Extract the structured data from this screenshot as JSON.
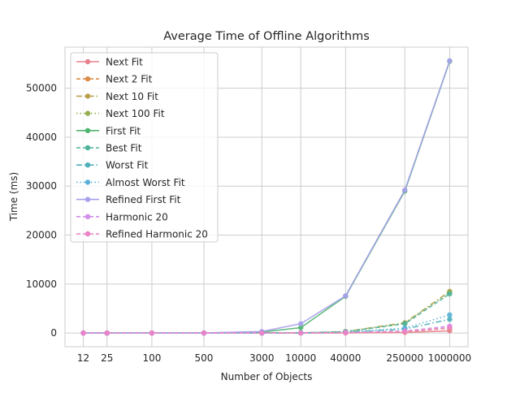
{
  "chart_data": {
    "type": "line",
    "title": "Average Time of Offline Algorithms",
    "xlabel": "Number of Objects",
    "ylabel": "Time (ms)",
    "x_scale": "log",
    "x": [
      12,
      25,
      100,
      500,
      3000,
      10000,
      40000,
      250000,
      1000000
    ],
    "x_tick_labels": [
      "12",
      "25",
      "100",
      "500",
      "3000",
      "10000",
      "40000",
      "250000",
      "1000000"
    ],
    "y_ticks": [
      0,
      10000,
      20000,
      30000,
      40000,
      50000
    ],
    "y_tick_labels": [
      "0",
      "10000",
      "20000",
      "30000",
      "40000",
      "50000"
    ],
    "ylim": [
      -2800,
      58400
    ],
    "grid": true,
    "legend_position": "top-left",
    "series": [
      {
        "name": "Next Fit",
        "color": "#e8808e",
        "dash": "solid",
        "values": [
          0,
          0,
          0,
          0,
          2,
          5,
          20,
          120,
          450
        ]
      },
      {
        "name": "Next 2 Fit",
        "color": "#dd8c48",
        "dash": "dashed",
        "values": [
          0,
          0,
          0,
          0,
          3,
          8,
          40,
          250,
          1000
        ]
      },
      {
        "name": "Next 10 Fit",
        "color": "#b9a04a",
        "dash": "dashdot",
        "values": [
          0,
          0,
          0,
          1,
          10,
          40,
          300,
          2100,
          8500
        ]
      },
      {
        "name": "Next 100 Fit",
        "color": "#96ae4f",
        "dash": "dotted",
        "values": [
          0,
          0,
          0,
          1,
          10,
          40,
          300,
          2000,
          8300
        ]
      },
      {
        "name": "First Fit",
        "color": "#4fb56f",
        "dash": "solid",
        "values": [
          0,
          0,
          1,
          15,
          200,
          1100,
          7500,
          29000,
          55500
        ]
      },
      {
        "name": "Best Fit",
        "color": "#4cb49a",
        "dash": "dashed",
        "values": [
          0,
          0,
          0,
          1,
          10,
          40,
          250,
          1900,
          8000
        ]
      },
      {
        "name": "Worst Fit",
        "color": "#4fafbb",
        "dash": "dashdot",
        "values": [
          0,
          0,
          0,
          1,
          8,
          30,
          150,
          800,
          2800
        ]
      },
      {
        "name": "Almost Worst Fit",
        "color": "#58b1d8",
        "dash": "dotted",
        "values": [
          0,
          0,
          0,
          1,
          8,
          30,
          180,
          1000,
          3700
        ]
      },
      {
        "name": "Refined First Fit",
        "color": "#a6a0ec",
        "dash": "solid",
        "values": [
          0,
          0,
          1,
          20,
          300,
          1900,
          7600,
          29200,
          55600
        ]
      },
      {
        "name": "Harmonic 20",
        "color": "#d28ee9",
        "dash": "dashed",
        "values": [
          0,
          0,
          0,
          1,
          5,
          20,
          80,
          400,
          1400
        ]
      },
      {
        "name": "Refined Harmonic 20",
        "color": "#ec83c8",
        "dash": "dashed",
        "values": [
          0,
          0,
          0,
          1,
          5,
          15,
          60,
          300,
          1100
        ]
      }
    ]
  }
}
